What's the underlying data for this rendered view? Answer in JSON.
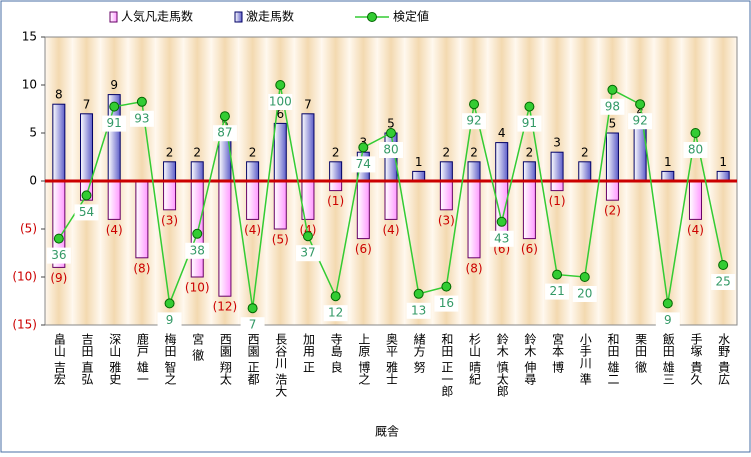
{
  "chart_data": {
    "type": "bar-line",
    "x_label": "厩舎",
    "categories": [
      "畠山 吉宏",
      "吉田 直弘",
      "深山 雅史",
      "鹿戸 雄一",
      "梅田 智之",
      "宮 徹",
      "西園 翔太",
      "西園 正都",
      "長谷川 浩大",
      "加用 正",
      "寺島 良",
      "上原 博之",
      "奥平 雅士",
      "緒方 努",
      "和田 正一郎",
      "杉山 晴紀",
      "鈴木 慎太郎",
      "鈴木 伸尋",
      "宮本 博",
      "小手川 準",
      "和田 雄二",
      "栗田 徹",
      "飯田 雄三",
      "手塚 貴久",
      "水野 貴広"
    ],
    "series": [
      {
        "name": "人気凡走馬数",
        "color": "#ffccff",
        "values": [
          -9,
          -2,
          -4,
          -8,
          -3,
          -10,
          -12,
          -4,
          -5,
          -4,
          -1,
          -6,
          -4,
          0,
          -3,
          -8,
          -6,
          -6,
          -1,
          0,
          -2,
          0,
          0,
          -4,
          0
        ],
        "value_labels": [
          "(9)",
          "(2)",
          "(4)",
          "(8)",
          "(3)",
          "(10)",
          "(12)",
          "(4)",
          "(5)",
          "(4)",
          "(1)",
          "(6)",
          "(4)",
          null,
          "(3)",
          "(8)",
          "(6)",
          "(6)",
          "(1)",
          null,
          "(2)",
          null,
          null,
          "(4)",
          null
        ]
      },
      {
        "name": "激走馬数",
        "color": "#3333aa",
        "values": [
          8,
          7,
          9,
          0,
          2,
          2,
          5,
          2,
          6,
          7,
          2,
          3,
          5,
          1,
          2,
          2,
          4,
          2,
          3,
          2,
          5,
          6,
          1,
          0,
          1
        ]
      },
      {
        "name": "検定値",
        "color": "#33cc33",
        "axis": "y2",
        "values": [
          36,
          54,
          91,
          93,
          9,
          38,
          87,
          7,
          100,
          37,
          12,
          74,
          80,
          13,
          16,
          92,
          43,
          91,
          21,
          20,
          98,
          92,
          9,
          80,
          25
        ]
      }
    ],
    "ylim": [
      -15,
      15
    ],
    "yticks": [
      {
        "value": -15,
        "label": "(15)"
      },
      {
        "value": -10,
        "label": "(10)"
      },
      {
        "value": -5,
        "label": "(5)"
      },
      0,
      5,
      10,
      15
    ],
    "y2lim": [
      0,
      120
    ]
  }
}
